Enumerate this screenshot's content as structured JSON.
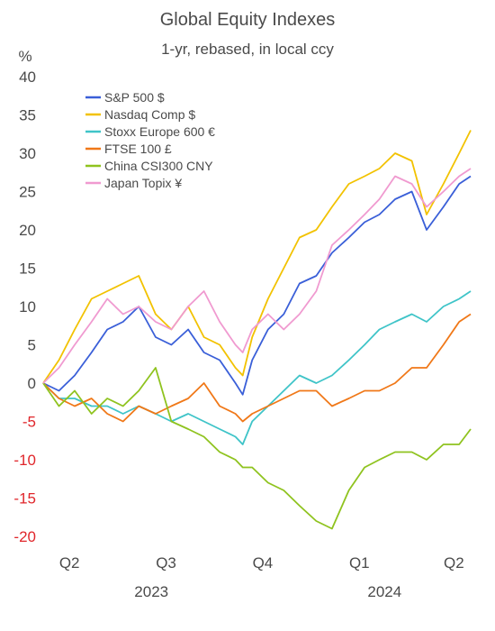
{
  "chart_data": {
    "type": "line",
    "title": "Global Equity Indexes",
    "subtitle": "1-yr, rebased, in local ccy",
    "ylabel": "%",
    "ylim": [
      -20,
      40
    ],
    "yticks": [
      40,
      35,
      30,
      25,
      20,
      15,
      10,
      5,
      0,
      -5,
      -10,
      -15,
      -20
    ],
    "xlim": [
      "2023-04-20",
      "2024-05-31"
    ],
    "quarter_ticks": [
      {
        "label": "Q2",
        "date": "2023-05-15"
      },
      {
        "label": "Q3",
        "date": "2023-08-15"
      },
      {
        "label": "Q4",
        "date": "2023-11-15"
      },
      {
        "label": "Q1",
        "date": "2024-02-15"
      },
      {
        "label": "Q2",
        "date": "2024-05-15"
      }
    ],
    "year_labels": [
      {
        "label": "2023",
        "date": "2023-08-01"
      },
      {
        "label": "2024",
        "date": "2024-03-10"
      }
    ],
    "legend_position": "top-left",
    "series": [
      {
        "name": "S&P 500 $",
        "color": "#3a5fd8",
        "x": [
          "2023-04-20",
          "2023-05-05",
          "2023-05-20",
          "2023-06-05",
          "2023-06-20",
          "2023-07-05",
          "2023-07-20",
          "2023-08-05",
          "2023-08-20",
          "2023-09-05",
          "2023-09-20",
          "2023-10-05",
          "2023-10-20",
          "2023-10-27",
          "2023-11-05",
          "2023-11-20",
          "2023-12-05",
          "2023-12-20",
          "2024-01-05",
          "2024-01-20",
          "2024-02-05",
          "2024-02-20",
          "2024-03-05",
          "2024-03-20",
          "2024-04-05",
          "2024-04-19",
          "2024-05-05",
          "2024-05-20",
          "2024-05-31"
        ],
        "y": [
          0,
          -1,
          1,
          4,
          7,
          8,
          10,
          6,
          5,
          7,
          4,
          3,
          0,
          -1.5,
          3,
          7,
          9,
          13,
          14,
          17,
          19,
          21,
          22,
          24,
          25,
          20,
          23,
          26,
          27
        ]
      },
      {
        "name": "Nasdaq Comp $",
        "color": "#f2c200",
        "x": [
          "2023-04-20",
          "2023-05-05",
          "2023-05-20",
          "2023-06-05",
          "2023-06-20",
          "2023-07-05",
          "2023-07-20",
          "2023-08-05",
          "2023-08-20",
          "2023-09-05",
          "2023-09-20",
          "2023-10-05",
          "2023-10-20",
          "2023-10-27",
          "2023-11-05",
          "2023-11-20",
          "2023-12-05",
          "2023-12-20",
          "2024-01-05",
          "2024-01-20",
          "2024-02-05",
          "2024-02-20",
          "2024-03-05",
          "2024-03-20",
          "2024-04-05",
          "2024-04-19",
          "2024-05-05",
          "2024-05-20",
          "2024-05-31"
        ],
        "y": [
          0,
          3,
          7,
          11,
          12,
          13,
          14,
          9,
          7,
          10,
          6,
          5,
          2,
          1,
          6,
          11,
          15,
          19,
          20,
          23,
          26,
          27,
          28,
          30,
          29,
          22,
          26,
          30,
          33
        ]
      },
      {
        "name": "Stoxx Europe 600  €",
        "color": "#3fc4c8",
        "x": [
          "2023-04-20",
          "2023-05-05",
          "2023-05-20",
          "2023-06-05",
          "2023-06-20",
          "2023-07-05",
          "2023-07-20",
          "2023-08-05",
          "2023-08-20",
          "2023-09-05",
          "2023-09-20",
          "2023-10-05",
          "2023-10-20",
          "2023-10-27",
          "2023-11-05",
          "2023-11-20",
          "2023-12-05",
          "2023-12-20",
          "2024-01-05",
          "2024-01-20",
          "2024-02-05",
          "2024-02-20",
          "2024-03-05",
          "2024-03-20",
          "2024-04-05",
          "2024-04-19",
          "2024-05-05",
          "2024-05-20",
          "2024-05-31"
        ],
        "y": [
          0,
          -2,
          -2,
          -3,
          -3,
          -4,
          -3,
          -4,
          -5,
          -4,
          -5,
          -6,
          -7,
          -8,
          -5,
          -3,
          -1,
          1,
          0,
          1,
          3,
          5,
          7,
          8,
          9,
          8,
          10,
          11,
          12
        ]
      },
      {
        "name": "FTSE 100  £",
        "color": "#f07818",
        "x": [
          "2023-04-20",
          "2023-05-05",
          "2023-05-20",
          "2023-06-05",
          "2023-06-20",
          "2023-07-05",
          "2023-07-20",
          "2023-08-05",
          "2023-08-20",
          "2023-09-05",
          "2023-09-20",
          "2023-10-05",
          "2023-10-20",
          "2023-10-27",
          "2023-11-05",
          "2023-11-20",
          "2023-12-05",
          "2023-12-20",
          "2024-01-05",
          "2024-01-20",
          "2024-02-05",
          "2024-02-20",
          "2024-03-05",
          "2024-03-20",
          "2024-04-05",
          "2024-04-19",
          "2024-05-05",
          "2024-05-20",
          "2024-05-31"
        ],
        "y": [
          0,
          -2,
          -3,
          -2,
          -4,
          -5,
          -3,
          -4,
          -3,
          -2,
          0,
          -3,
          -4,
          -5,
          -4,
          -3,
          -2,
          -1,
          -1,
          -3,
          -2,
          -1,
          -1,
          0,
          2,
          2,
          5,
          8,
          9
        ]
      },
      {
        "name": "China CSI300  CNY",
        "color": "#8fc31f",
        "x": [
          "2023-04-20",
          "2023-05-05",
          "2023-05-20",
          "2023-06-05",
          "2023-06-20",
          "2023-07-05",
          "2023-07-20",
          "2023-08-05",
          "2023-08-20",
          "2023-09-05",
          "2023-09-20",
          "2023-10-05",
          "2023-10-20",
          "2023-10-27",
          "2023-11-05",
          "2023-11-20",
          "2023-12-05",
          "2023-12-20",
          "2024-01-05",
          "2024-01-20",
          "2024-02-05",
          "2024-02-20",
          "2024-03-05",
          "2024-03-20",
          "2024-04-05",
          "2024-04-19",
          "2024-05-05",
          "2024-05-20",
          "2024-05-31"
        ],
        "y": [
          0,
          -3,
          -1,
          -4,
          -2,
          -3,
          -1,
          2,
          -5,
          -6,
          -7,
          -9,
          -10,
          -11,
          -11,
          -13,
          -14,
          -16,
          -18,
          -19,
          -14,
          -11,
          -10,
          -9,
          -9,
          -10,
          -8,
          -8,
          -6
        ]
      },
      {
        "name": "Japan Topix  ¥",
        "color": "#f09ad0",
        "x": [
          "2023-04-20",
          "2023-05-05",
          "2023-05-20",
          "2023-06-05",
          "2023-06-20",
          "2023-07-05",
          "2023-07-20",
          "2023-08-05",
          "2023-08-20",
          "2023-09-05",
          "2023-09-20",
          "2023-10-05",
          "2023-10-20",
          "2023-10-27",
          "2023-11-05",
          "2023-11-20",
          "2023-12-05",
          "2023-12-20",
          "2024-01-05",
          "2024-01-20",
          "2024-02-05",
          "2024-02-20",
          "2024-03-05",
          "2024-03-20",
          "2024-04-05",
          "2024-04-19",
          "2024-05-05",
          "2024-05-20",
          "2024-05-31"
        ],
        "y": [
          0,
          2,
          5,
          8,
          11,
          9,
          10,
          8,
          7,
          10,
          12,
          8,
          5,
          4,
          7,
          9,
          7,
          9,
          12,
          18,
          20,
          22,
          24,
          27,
          26,
          23,
          25,
          27,
          28
        ]
      }
    ]
  }
}
